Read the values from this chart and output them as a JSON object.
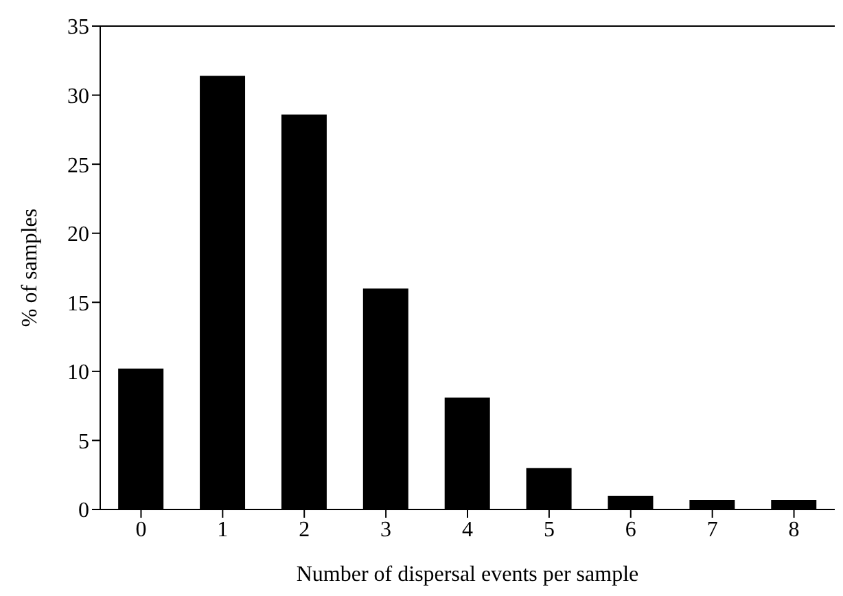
{
  "chart_data": {
    "type": "bar",
    "xlabel": "Number of dispersal events per sample",
    "ylabel": "% of samples",
    "categories": [
      "0",
      "1",
      "2",
      "3",
      "4",
      "5",
      "6",
      "7",
      "8"
    ],
    "values": [
      10.2,
      31.4,
      28.6,
      16.0,
      8.1,
      3.0,
      1.0,
      0.7,
      0.7
    ],
    "color": "#000000",
    "ylim": [
      0,
      35
    ],
    "yticks": [
      0,
      5,
      10,
      15,
      20,
      25,
      30,
      35
    ]
  }
}
